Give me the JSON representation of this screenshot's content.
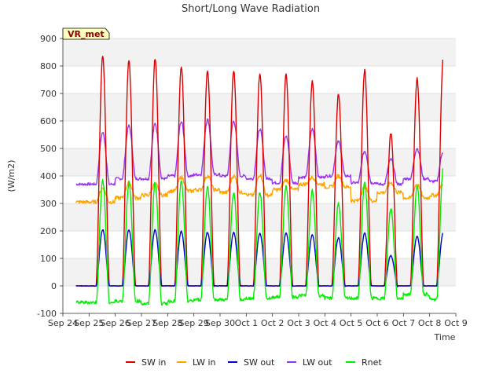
{
  "chart_data": {
    "type": "line",
    "title": "Short/Long Wave Radiation",
    "xlabel": "Time",
    "ylabel": "(W/m2)",
    "badge": "VR_met",
    "ylim": [
      -100,
      900
    ],
    "yticks": [
      -100,
      0,
      100,
      200,
      300,
      400,
      500,
      600,
      700,
      800,
      900
    ],
    "xlim": [
      "2023-09-24",
      "2023-10-09"
    ],
    "xtick_labels": [
      "Sep 24",
      "Sep 25",
      "Sep 26",
      "Sep 27",
      "Sep 28",
      "Sep 29",
      "Sep 30",
      "Oct 1",
      "Oct 2",
      "Oct 3",
      "Oct 4",
      "Oct 5",
      "Oct 6",
      "Oct 7",
      "Oct 8",
      "Oct 9"
    ],
    "data_start": "2023-09-24 12:00",
    "data_end": "2023-10-08 12:00",
    "legend_position": "bottom",
    "grid": true,
    "series": [
      {
        "name": "SW in",
        "color": "#dd0000",
        "daily_peaks": [
          835,
          820,
          828,
          800,
          785,
          785,
          773,
          770,
          745,
          700,
          785,
          555,
          755,
          830
        ]
      },
      {
        "name": "LW in",
        "color": "#ffa500",
        "daily_peaks": [
          355,
          375,
          370,
          395,
          400,
          400,
          405,
          385,
          395,
          400,
          360,
          375,
          370,
          370
        ],
        "night_levels": [
          305,
          320,
          330,
          345,
          350,
          340,
          330,
          350,
          370,
          360,
          310,
          340,
          320,
          330
        ]
      },
      {
        "name": "SW out",
        "color": "#0000cc",
        "daily_peaks": [
          205,
          203,
          203,
          198,
          195,
          195,
          192,
          192,
          185,
          175,
          192,
          110,
          180,
          195
        ]
      },
      {
        "name": "LW out",
        "color": "#9933ee",
        "daily_peaks": [
          558,
          582,
          590,
          598,
          605,
          600,
          570,
          545,
          570,
          525,
          490,
          460,
          500,
          490
        ],
        "night_levels": [
          370,
          390,
          390,
          400,
          405,
          400,
          390,
          375,
          395,
          400,
          375,
          370,
          390,
          380
        ]
      },
      {
        "name": "Rnet",
        "color": "#00ee00",
        "daily_peaks": [
          385,
          375,
          375,
          380,
          362,
          342,
          340,
          362,
          345,
          300,
          375,
          280,
          360,
          430
        ],
        "night_levels": [
          -60,
          -55,
          -65,
          -55,
          -50,
          -50,
          -45,
          -40,
          -35,
          -45,
          -45,
          -45,
          -30,
          -50
        ]
      }
    ]
  }
}
